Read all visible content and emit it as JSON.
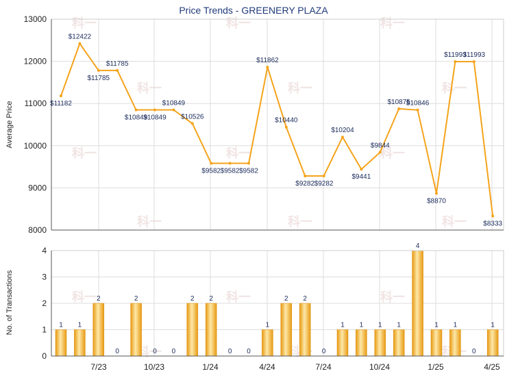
{
  "chart_data": [
    {
      "type": "line",
      "title": "Price Trends - GREENERY PLAZA",
      "ylabel": "Average Price",
      "ylim": [
        8000,
        13000
      ],
      "yticks": [
        8000,
        9000,
        10000,
        11000,
        12000,
        13000
      ],
      "xticks": [
        "7/23",
        "10/23",
        "1/24",
        "4/24",
        "7/24",
        "10/24",
        "1/25",
        "4/25"
      ],
      "grid": true,
      "color": "#f5a31a",
      "points": [
        {
          "period": 0,
          "value": 11182,
          "label": "$11182"
        },
        {
          "period": 1,
          "value": 12422,
          "label": "$12422"
        },
        {
          "period": 2,
          "value": 11785,
          "label": "$11785"
        },
        {
          "period": 3,
          "value": 11785,
          "label": "$11785"
        },
        {
          "period": 4,
          "value": 10849,
          "label": "$10849"
        },
        {
          "period": 5,
          "value": 10849,
          "label": "$10849"
        },
        {
          "period": 6,
          "value": 10849,
          "label": "$10849"
        },
        {
          "period": 7,
          "value": 10526,
          "label": "$10526"
        },
        {
          "period": 8,
          "value": 9582,
          "label": "$9582"
        },
        {
          "period": 9,
          "value": 9582,
          "label": "$9582"
        },
        {
          "period": 10,
          "value": 9582,
          "label": "$9582"
        },
        {
          "period": 11,
          "value": 11862,
          "label": "$11862"
        },
        {
          "period": 12,
          "value": 10440,
          "label": "$10440"
        },
        {
          "period": 13,
          "value": 9282,
          "label": "$9282"
        },
        {
          "period": 14,
          "value": 9282,
          "label": "$9282"
        },
        {
          "period": 15,
          "value": 10204,
          "label": "$10204"
        },
        {
          "period": 16,
          "value": 9441,
          "label": "$9441"
        },
        {
          "period": 17,
          "value": 9844,
          "label": "$9844"
        },
        {
          "period": 18,
          "value": 10875,
          "label": "$10875"
        },
        {
          "period": 19,
          "value": 10846,
          "label": "$10846"
        },
        {
          "period": 20,
          "value": 8870,
          "label": "$8870"
        },
        {
          "period": 21,
          "value": 11993,
          "label": "$11993"
        },
        {
          "period": 22,
          "value": 11993,
          "label": "$11993"
        },
        {
          "period": 23,
          "value": 8333,
          "label": "$8333"
        }
      ]
    },
    {
      "type": "bar",
      "ylabel": "No. of Transactions",
      "ylim": [
        0,
        4
      ],
      "yticks": [
        0,
        1,
        2,
        3,
        4
      ],
      "xticks": [
        "7/23",
        "10/23",
        "1/24",
        "4/24",
        "7/24",
        "10/24",
        "1/25",
        "4/25"
      ],
      "grid": true,
      "color": "#f5b82a",
      "values": [
        1,
        1,
        2,
        0,
        2,
        0,
        0,
        2,
        2,
        0,
        0,
        1,
        2,
        2,
        0,
        1,
        1,
        1,
        1,
        4,
        1,
        1,
        0,
        1
      ]
    }
  ],
  "colors": {
    "line": "#f5a31a",
    "bar_light": "#fde8a8",
    "bar_dark": "#e89a12",
    "grid": "#dddddd",
    "axis": "#555555",
    "title": "#1f3a7a"
  },
  "watermark": "科一"
}
